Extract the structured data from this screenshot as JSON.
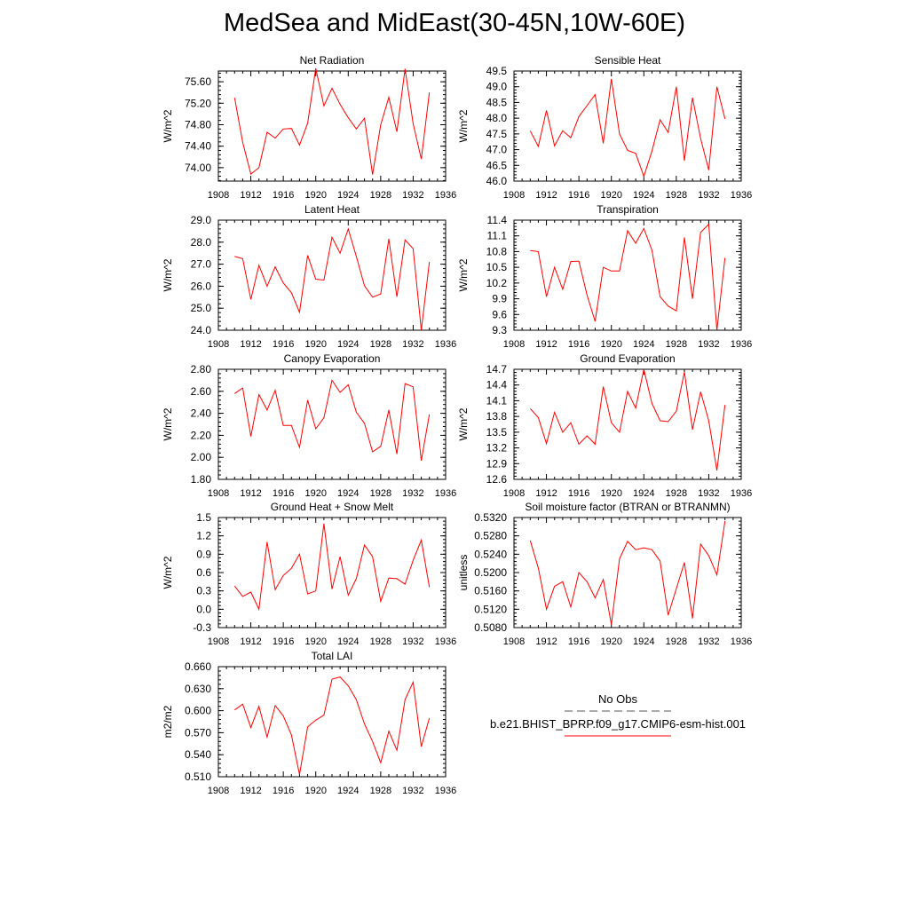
{
  "title": "MedSea and MidEast(30-45N,10W-60E)",
  "legend": {
    "obs_label": "No Obs",
    "model_label": "b.e21.BHIST_BPRP.f09_g17.CMIP6-esm-hist.001",
    "obs_color": "#555555",
    "model_color": "#ff0000",
    "obs_style": "dashed"
  },
  "chart_data": [
    {
      "type": "line",
      "title": "Net Radiation",
      "ylabel": "W/m^2",
      "xlim": [
        1908,
        1936
      ],
      "xticks": [
        "1908",
        "1912",
        "1916",
        "1920",
        "1924",
        "1928",
        "1932",
        "1936"
      ],
      "ylim": [
        73.75,
        75.8
      ],
      "yticks": [
        "74.00",
        "74.40",
        "74.80",
        "75.20",
        "75.60"
      ],
      "series": [
        {
          "color": "#ff0000",
          "x": [
            1910,
            1911,
            1912,
            1913,
            1914,
            1915,
            1916,
            1917,
            1918,
            1919,
            1920,
            1921,
            1922,
            1923,
            1924,
            1925,
            1926,
            1927,
            1928,
            1929,
            1930,
            1931,
            1932,
            1933,
            1934
          ],
          "values": [
            75.3,
            74.47,
            73.88,
            74.0,
            74.66,
            74.55,
            74.72,
            74.73,
            74.42,
            74.83,
            75.85,
            75.15,
            75.48,
            75.18,
            74.93,
            74.72,
            74.92,
            73.87,
            74.8,
            75.31,
            74.67,
            75.84,
            74.82,
            74.16,
            75.4
          ]
        }
      ]
    },
    {
      "type": "line",
      "title": "Sensible Heat",
      "ylabel": "W/m^2",
      "xlim": [
        1908,
        1936
      ],
      "xticks": [
        "1908",
        "1912",
        "1916",
        "1920",
        "1924",
        "1928",
        "1932",
        "1936"
      ],
      "ylim": [
        46.0,
        49.5
      ],
      "yticks": [
        "46.0",
        "46.5",
        "47.0",
        "47.5",
        "48.0",
        "48.5",
        "49.0",
        "49.5"
      ],
      "series": [
        {
          "color": "#ff0000",
          "x": [
            1910,
            1911,
            1912,
            1913,
            1914,
            1915,
            1916,
            1917,
            1918,
            1919,
            1920,
            1921,
            1922,
            1923,
            1924,
            1925,
            1926,
            1927,
            1928,
            1929,
            1930,
            1931,
            1932,
            1933,
            1934
          ],
          "values": [
            47.6,
            47.1,
            48.25,
            47.12,
            47.6,
            47.38,
            48.05,
            48.4,
            48.75,
            47.2,
            49.25,
            47.5,
            46.98,
            46.88,
            46.15,
            46.95,
            47.95,
            47.55,
            49.0,
            46.65,
            48.65,
            47.35,
            46.35,
            49.0,
            47.98
          ]
        }
      ]
    },
    {
      "type": "line",
      "title": "Latent Heat",
      "ylabel": "W/m^2",
      "xlim": [
        1908,
        1936
      ],
      "xticks": [
        "1908",
        "1912",
        "1916",
        "1920",
        "1924",
        "1928",
        "1932",
        "1936"
      ],
      "ylim": [
        24.0,
        29.0
      ],
      "yticks": [
        "24.0",
        "25.0",
        "26.0",
        "27.0",
        "28.0",
        "29.0"
      ],
      "series": [
        {
          "color": "#ff0000",
          "x": [
            1910,
            1911,
            1912,
            1913,
            1914,
            1915,
            1916,
            1917,
            1918,
            1919,
            1920,
            1921,
            1922,
            1923,
            1924,
            1925,
            1926,
            1927,
            1928,
            1929,
            1930,
            1931,
            1932,
            1933,
            1934
          ],
          "values": [
            27.35,
            27.25,
            25.4,
            26.95,
            26.0,
            26.88,
            26.15,
            25.7,
            24.82,
            27.4,
            26.32,
            26.28,
            28.22,
            27.5,
            28.6,
            27.35,
            26.02,
            25.5,
            25.65,
            28.15,
            25.52,
            28.1,
            27.7,
            24.0,
            27.1
          ]
        }
      ]
    },
    {
      "type": "line",
      "title": "Transpiration",
      "ylabel": "W/m^2",
      "xlim": [
        1908,
        1936
      ],
      "xticks": [
        "1908",
        "1912",
        "1916",
        "1920",
        "1924",
        "1928",
        "1932",
        "1936"
      ],
      "ylim": [
        9.3,
        11.4
      ],
      "yticks": [
        "9.3",
        "9.6",
        "9.9",
        "10.2",
        "10.5",
        "10.8",
        "11.1",
        "11.4"
      ],
      "series": [
        {
          "color": "#ff0000",
          "x": [
            1910,
            1911,
            1912,
            1913,
            1914,
            1915,
            1916,
            1917,
            1918,
            1919,
            1920,
            1921,
            1922,
            1923,
            1924,
            1925,
            1926,
            1927,
            1928,
            1929,
            1930,
            1931,
            1932,
            1933,
            1934
          ],
          "values": [
            10.82,
            10.8,
            9.94,
            10.5,
            10.08,
            10.61,
            10.62,
            9.97,
            9.47,
            10.5,
            10.43,
            10.43,
            11.2,
            10.96,
            11.24,
            10.83,
            9.94,
            9.76,
            9.67,
            11.07,
            9.9,
            11.17,
            11.32,
            9.3,
            10.68
          ]
        }
      ]
    },
    {
      "type": "line",
      "title": "Canopy Evaporation",
      "ylabel": "W/m^2",
      "xlim": [
        1908,
        1936
      ],
      "xticks": [
        "1908",
        "1912",
        "1916",
        "1920",
        "1924",
        "1928",
        "1932",
        "1936"
      ],
      "ylim": [
        1.8,
        2.8
      ],
      "yticks": [
        "1.80",
        "2.00",
        "2.20",
        "2.40",
        "2.60",
        "2.80"
      ],
      "series": [
        {
          "color": "#ff0000",
          "x": [
            1910,
            1911,
            1912,
            1913,
            1914,
            1915,
            1916,
            1917,
            1918,
            1919,
            1920,
            1921,
            1922,
            1923,
            1924,
            1925,
            1926,
            1927,
            1928,
            1929,
            1930,
            1931,
            1932,
            1933,
            1934
          ],
          "values": [
            2.58,
            2.63,
            2.19,
            2.57,
            2.43,
            2.61,
            2.29,
            2.29,
            2.09,
            2.52,
            2.26,
            2.36,
            2.7,
            2.59,
            2.66,
            2.41,
            2.31,
            2.05,
            2.1,
            2.43,
            2.03,
            2.67,
            2.64,
            1.97,
            2.39
          ]
        }
      ]
    },
    {
      "type": "line",
      "title": "Ground Evaporation",
      "ylabel": "W/m^2",
      "xlim": [
        1908,
        1936
      ],
      "xticks": [
        "1908",
        "1912",
        "1916",
        "1920",
        "1924",
        "1928",
        "1932",
        "1936"
      ],
      "ylim": [
        12.6,
        14.7
      ],
      "yticks": [
        "12.6",
        "12.9",
        "13.2",
        "13.5",
        "13.8",
        "14.1",
        "14.4",
        "14.7"
      ],
      "series": [
        {
          "color": "#ff0000",
          "x": [
            1910,
            1911,
            1912,
            1913,
            1914,
            1915,
            1916,
            1917,
            1918,
            1919,
            1920,
            1921,
            1922,
            1923,
            1924,
            1925,
            1926,
            1927,
            1928,
            1929,
            1930,
            1931,
            1932,
            1933,
            1934
          ],
          "values": [
            13.95,
            13.78,
            13.28,
            13.88,
            13.5,
            13.68,
            13.27,
            13.43,
            13.27,
            14.37,
            13.68,
            13.5,
            14.28,
            13.96,
            14.7,
            14.05,
            13.72,
            13.7,
            13.9,
            14.65,
            13.55,
            14.27,
            13.72,
            12.77,
            14.02
          ]
        }
      ]
    },
    {
      "type": "line",
      "title": "Ground Heat + Snow Melt",
      "ylabel": "W/m^2",
      "xlim": [
        1908,
        1936
      ],
      "xticks": [
        "1908",
        "1912",
        "1916",
        "1920",
        "1924",
        "1928",
        "1932",
        "1936"
      ],
      "ylim": [
        -0.3,
        1.5
      ],
      "yticks": [
        "-0.3",
        "0.0",
        "0.3",
        "0.6",
        "0.9",
        "1.2",
        "1.5"
      ],
      "series": [
        {
          "color": "#ff0000",
          "x": [
            1910,
            1911,
            1912,
            1913,
            1914,
            1915,
            1916,
            1917,
            1918,
            1919,
            1920,
            1921,
            1922,
            1923,
            1924,
            1925,
            1926,
            1927,
            1928,
            1929,
            1930,
            1931,
            1932,
            1933,
            1934
          ],
          "values": [
            0.38,
            0.21,
            0.28,
            0.0,
            1.1,
            0.32,
            0.55,
            0.67,
            0.9,
            0.25,
            0.3,
            1.4,
            0.33,
            0.86,
            0.23,
            0.5,
            1.05,
            0.86,
            0.13,
            0.51,
            0.5,
            0.41,
            0.8,
            1.13,
            0.36
          ]
        }
      ]
    },
    {
      "type": "line",
      "title": "Soil moisture factor (BTRAN or BTRANMN)",
      "ylabel": "unitless",
      "xlim": [
        1908,
        1936
      ],
      "xticks": [
        "1908",
        "1912",
        "1916",
        "1920",
        "1924",
        "1928",
        "1932",
        "1936"
      ],
      "ylim": [
        0.508,
        0.532
      ],
      "yticks": [
        "0.5080",
        "0.5120",
        "0.5160",
        "0.5200",
        "0.5240",
        "0.5280",
        "0.5320"
      ],
      "series": [
        {
          "color": "#ff0000",
          "x": [
            1910,
            1911,
            1912,
            1913,
            1914,
            1915,
            1916,
            1917,
            1918,
            1919,
            1920,
            1921,
            1922,
            1923,
            1924,
            1925,
            1926,
            1927,
            1928,
            1929,
            1930,
            1931,
            1932,
            1933,
            1934
          ],
          "values": [
            0.527,
            0.521,
            0.512,
            0.517,
            0.518,
            0.5125,
            0.52,
            0.518,
            0.5145,
            0.5185,
            0.5087,
            0.523,
            0.5268,
            0.525,
            0.5254,
            0.525,
            0.5225,
            0.5107,
            0.5165,
            0.5222,
            0.51,
            0.5262,
            0.5237,
            0.5195,
            0.5312
          ]
        }
      ]
    },
    {
      "type": "line",
      "title": "Total LAI",
      "ylabel": "m2/m2",
      "xlim": [
        1908,
        1936
      ],
      "xticks": [
        "1908",
        "1912",
        "1916",
        "1920",
        "1924",
        "1928",
        "1932",
        "1936"
      ],
      "ylim": [
        0.51,
        0.66
      ],
      "yticks": [
        "0.510",
        "0.540",
        "0.570",
        "0.600",
        "0.630",
        "0.660"
      ],
      "series": [
        {
          "color": "#ff0000",
          "x": [
            1910,
            1911,
            1912,
            1913,
            1914,
            1915,
            1916,
            1917,
            1918,
            1919,
            1920,
            1921,
            1922,
            1923,
            1924,
            1925,
            1926,
            1927,
            1928,
            1929,
            1930,
            1931,
            1932,
            1933,
            1934
          ],
          "values": [
            0.601,
            0.609,
            0.577,
            0.606,
            0.564,
            0.607,
            0.593,
            0.567,
            0.513,
            0.578,
            0.587,
            0.594,
            0.643,
            0.646,
            0.634,
            0.615,
            0.582,
            0.558,
            0.529,
            0.572,
            0.546,
            0.615,
            0.639,
            0.551,
            0.59
          ]
        }
      ]
    }
  ]
}
